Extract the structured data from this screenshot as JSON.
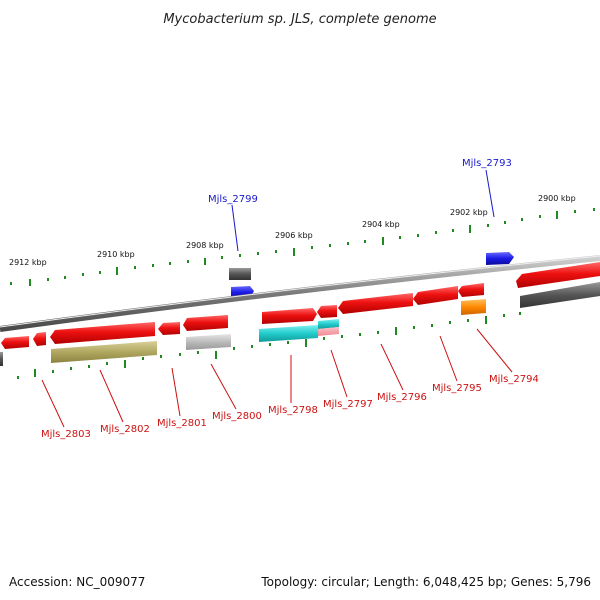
{
  "title": "Mycobacterium sp. JLS, complete genome",
  "footer": {
    "accession": "Accession: NC_009077",
    "summary": "Topology: circular; Length: 6,048,425 bp; Genes: 5,796"
  },
  "scale_labels": [
    "2912 kbp",
    "2910 kbp",
    "2908 kbp",
    "2906 kbp",
    "2904 kbp",
    "2902 kbp",
    "2900 kbp"
  ],
  "genes_above": [
    {
      "label": "Mjls_2799",
      "color": "#1a1acc"
    },
    {
      "label": "Mjls_2793",
      "color": "#1a1acc"
    }
  ],
  "genes_below": [
    {
      "label": "Mjls_2803",
      "color": "#cc1111"
    },
    {
      "label": "Mjls_2802",
      "color": "#cc1111"
    },
    {
      "label": "Mjls_2801",
      "color": "#cc1111"
    },
    {
      "label": "Mjls_2800",
      "color": "#cc1111"
    },
    {
      "label": "Mjls_2798",
      "color": "#cc1111"
    },
    {
      "label": "Mjls_2797",
      "color": "#cc1111"
    },
    {
      "label": "Mjls_2796",
      "color": "#cc1111"
    },
    {
      "label": "Mjls_2795",
      "color": "#cc1111"
    },
    {
      "label": "Mjls_2794",
      "color": "#cc1111"
    }
  ],
  "colors": {
    "backbone": "#888888",
    "forward_gene": "#ee1111",
    "reverse_gene": "#ee1111",
    "blue_gene": "#1a1ae6",
    "dark_gray_feature": "#555555",
    "light_gray_feature": "#bbbbbb",
    "olive_feature": "#b0a860",
    "cyan_feature": "#22cccc",
    "orange_feature": "#ff8800",
    "tick_green": "#1f8a1f"
  }
}
